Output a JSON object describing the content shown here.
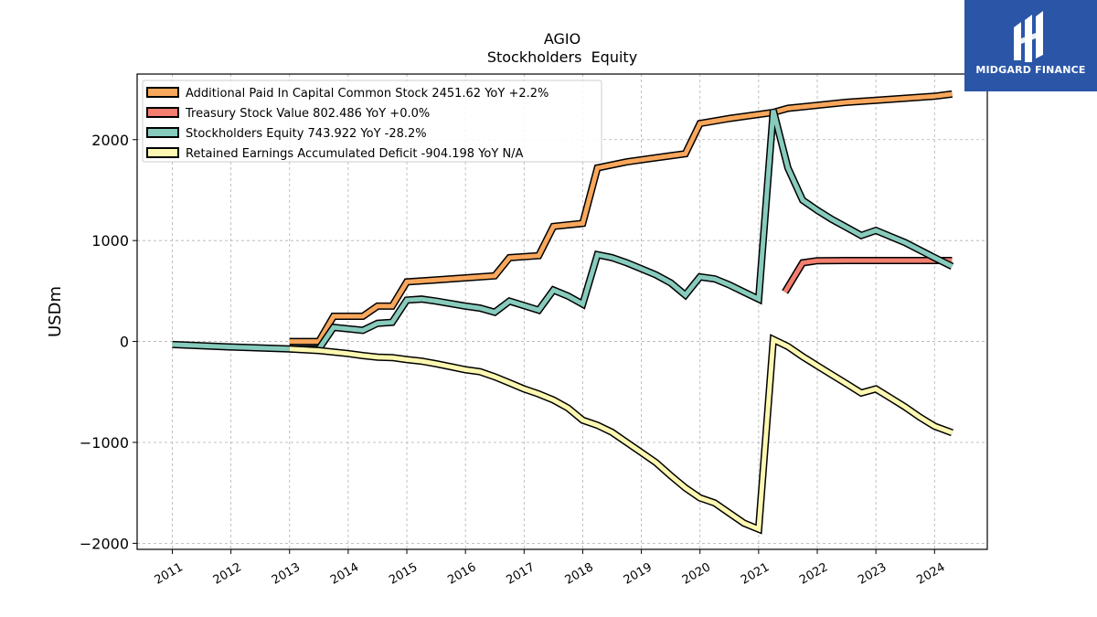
{
  "brand": {
    "name": "MIDGARD FINANCE",
    "bg_color": "#2b56a8"
  },
  "chart_data": {
    "type": "line",
    "title": "AGIO",
    "subtitle": "Stockholders  Equity",
    "xlabel": "",
    "ylabel": "USDm",
    "xlim": [
      2010.4,
      2024.9
    ],
    "ylim": [
      -2060,
      2650
    ],
    "yticks": [
      -2000,
      -1000,
      0,
      1000,
      2000
    ],
    "ytick_labels": [
      "−2000",
      "−1000",
      "0",
      "1000",
      "2000"
    ],
    "xticks": [
      2011,
      2012,
      2013,
      2014,
      2015,
      2016,
      2017,
      2018,
      2019,
      2020,
      2021,
      2022,
      2023,
      2024
    ],
    "grid": true,
    "legend_position": "top-left",
    "series": [
      {
        "name": "Additional Paid In Capital Common Stock  2451.62 YoY +2.2%",
        "color": "#f8a75c",
        "x": [
          2013.0,
          2013.5,
          2013.75,
          2014.25,
          2014.5,
          2014.75,
          2015.0,
          2015.5,
          2016.0,
          2016.5,
          2016.75,
          2017.25,
          2017.5,
          2018.0,
          2018.25,
          2018.75,
          2019.0,
          2019.5,
          2019.75,
          2020.0,
          2020.5,
          2021.0,
          2021.25,
          2021.5,
          2022.0,
          2022.5,
          2023.0,
          2023.5,
          2024.0,
          2024.3
        ],
        "y": [
          0,
          0,
          250,
          250,
          350,
          350,
          590,
          610,
          630,
          650,
          830,
          850,
          1140,
          1170,
          1720,
          1780,
          1800,
          1840,
          1860,
          2160,
          2210,
          2250,
          2270,
          2310,
          2340,
          2370,
          2390,
          2410,
          2430,
          2452
        ]
      },
      {
        "name": "Treasury Stock Value  802.486 YoY +0.0%",
        "color": "#f47e6f",
        "x": [
          2021.45,
          2021.75,
          2022.0,
          2022.5,
          2023.0,
          2023.5,
          2024.0,
          2024.3
        ],
        "y": [
          490,
          780,
          800,
          802,
          802,
          802,
          802,
          802
        ]
      },
      {
        "name": "Stockholders Equity  743.922 YoY -28.2%",
        "color": "#87cbbd",
        "x": [
          2011.0,
          2012.0,
          2013.0,
          2013.5,
          2013.75,
          2014.25,
          2014.5,
          2014.75,
          2015.0,
          2015.25,
          2015.5,
          2016.0,
          2016.25,
          2016.5,
          2016.75,
          2017.25,
          2017.5,
          2017.75,
          2018.0,
          2018.25,
          2018.5,
          2018.75,
          2019.0,
          2019.25,
          2019.5,
          2019.75,
          2020.0,
          2020.25,
          2020.5,
          2020.75,
          2021.0,
          2021.25,
          2021.5,
          2021.75,
          2022.0,
          2022.25,
          2022.5,
          2022.75,
          2023.0,
          2023.5,
          2024.0,
          2024.3
        ],
        "y": [
          -30,
          -55,
          -75,
          -75,
          140,
          110,
          180,
          190,
          410,
          420,
          400,
          350,
          330,
          290,
          400,
          310,
          510,
          450,
          370,
          860,
          830,
          780,
          720,
          660,
          580,
          460,
          640,
          620,
          560,
          490,
          420,
          2290,
          1720,
          1400,
          1300,
          1210,
          1130,
          1050,
          1100,
          980,
          830,
          744
        ]
      },
      {
        "name": "Retained Earnings Accumulated Deficit  -904.198 YoY N/A",
        "color": "#fcf8b1",
        "x": [
          2013.0,
          2013.5,
          2014.0,
          2014.25,
          2014.5,
          2014.75,
          2015.0,
          2015.25,
          2015.5,
          2015.75,
          2016.0,
          2016.25,
          2016.5,
          2016.75,
          2017.0,
          2017.25,
          2017.5,
          2017.75,
          2018.0,
          2018.25,
          2018.5,
          2018.75,
          2019.0,
          2019.25,
          2019.5,
          2019.75,
          2020.0,
          2020.25,
          2020.5,
          2020.75,
          2021.0,
          2021.25,
          2021.5,
          2021.75,
          2022.0,
          2022.25,
          2022.5,
          2022.75,
          2023.0,
          2023.25,
          2023.5,
          2023.75,
          2024.0,
          2024.3
        ],
        "y": [
          -75,
          -90,
          -120,
          -140,
          -155,
          -160,
          -180,
          -195,
          -220,
          -250,
          -280,
          -300,
          -350,
          -410,
          -470,
          -520,
          -580,
          -660,
          -780,
          -830,
          -900,
          -1000,
          -1100,
          -1200,
          -1330,
          -1450,
          -1550,
          -1600,
          -1700,
          -1800,
          -1860,
          20,
          -50,
          -150,
          -240,
          -330,
          -420,
          -510,
          -470,
          -560,
          -650,
          -750,
          -840,
          -904
        ]
      }
    ]
  }
}
